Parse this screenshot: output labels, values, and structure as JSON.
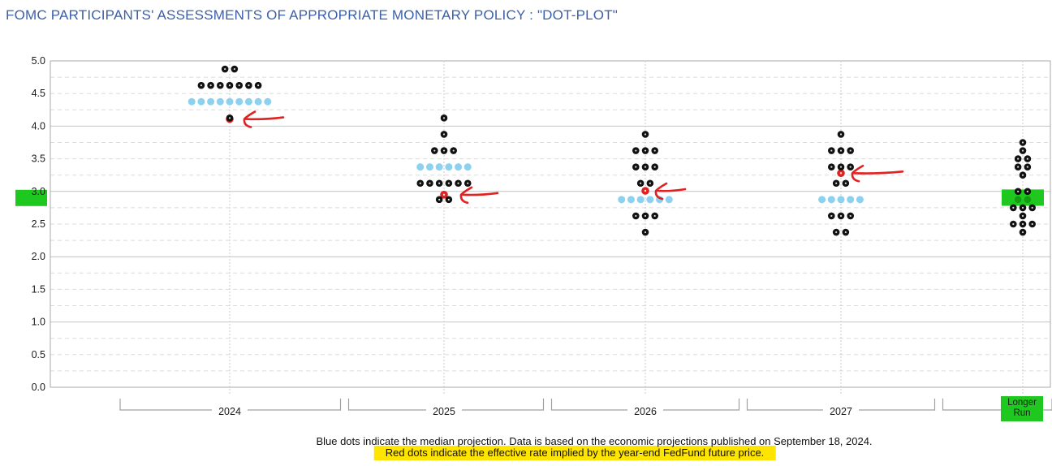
{
  "title": "FOMC PARTICIPANTS' ASSESSMENTS OF APPROPRIATE MONETARY POLICY : \"DOT-PLOT\"",
  "footer": {
    "line1": "Blue dots indicate the median projection. Data is based on the economic projections published on September 18, 2024.",
    "line2": "Red dots indicate the effective rate implied by the year-end FedFund future price."
  },
  "colors": {
    "title_blue": "#3c5fa9",
    "dot_black": "#121212",
    "dot_median_blue": "#8dd1f1",
    "dot_red": "#e02222",
    "arrow_red": "#e02222",
    "highlight_green": "#1ec81e",
    "highlight_yellow": "#ffe400",
    "band_dot_green": "#129c12",
    "grid_solid": "#c4c4c4",
    "grid_dashed": "#dbdbdb",
    "axis_line": "#a8a8a8",
    "bracket_gray": "#a0a0a0",
    "label_text": "#1a1a1a"
  },
  "chart_data": {
    "type": "scatter",
    "title": "FOMC dot plot - target federal funds rate assessments (percent)",
    "y_axis": {
      "min": 0.0,
      "max": 5.0,
      "tick_step": 0.5,
      "tick_labels": [
        "5.0",
        "4.5",
        "4.0",
        "3.5",
        "3.0",
        "2.5",
        "2.0",
        "1.5",
        "1.0",
        "0.5",
        "0.0"
      ],
      "highlighted_tick": "3.0",
      "grid": "solid lines at integers, dashed lines every 0.25"
    },
    "categories": [
      "2024",
      "2025",
      "2026",
      "2027",
      "Longer Run"
    ],
    "columns": [
      {
        "label": "2024",
        "median": 4.375,
        "dots": [
          {
            "rate": 4.875,
            "count": 2
          },
          {
            "rate": 4.625,
            "count": 7
          },
          {
            "rate": 4.375,
            "count": 9,
            "kind": "median"
          },
          {
            "rate": 4.125,
            "count": 1
          }
        ],
        "fedfund_rate": 4.11,
        "arrow": true
      },
      {
        "label": "2025",
        "median": 3.375,
        "dots": [
          {
            "rate": 4.125,
            "count": 1
          },
          {
            "rate": 3.875,
            "count": 1
          },
          {
            "rate": 3.625,
            "count": 3
          },
          {
            "rate": 3.375,
            "count": 6,
            "kind": "median"
          },
          {
            "rate": 3.125,
            "count": 6
          },
          {
            "rate": 2.875,
            "count": 2
          }
        ],
        "fedfund_rate": 2.95,
        "arrow": true
      },
      {
        "label": "2026",
        "median": 2.875,
        "dots": [
          {
            "rate": 3.875,
            "count": 1
          },
          {
            "rate": 3.625,
            "count": 3
          },
          {
            "rate": 3.375,
            "count": 3
          },
          {
            "rate": 3.125,
            "count": 2
          },
          {
            "rate": 2.875,
            "count": 6,
            "kind": "median"
          },
          {
            "rate": 2.625,
            "count": 3
          },
          {
            "rate": 2.375,
            "count": 1
          }
        ],
        "fedfund_rate": 3.01,
        "arrow": true
      },
      {
        "label": "2027",
        "median": 2.875,
        "dots": [
          {
            "rate": 3.875,
            "count": 1
          },
          {
            "rate": 3.625,
            "count": 3
          },
          {
            "rate": 3.375,
            "count": 3
          },
          {
            "rate": 3.125,
            "count": 2
          },
          {
            "rate": 2.875,
            "count": 5,
            "kind": "median"
          },
          {
            "rate": 2.625,
            "count": 3
          },
          {
            "rate": 2.375,
            "count": 2
          }
        ],
        "fedfund_rate": 3.28,
        "arrow": true
      },
      {
        "label": "Longer Run",
        "label_lines": [
          "Longer",
          "Run"
        ],
        "label_highlight": "green",
        "green_band": {
          "rate_top": 3.03,
          "rate_bottom": 2.78
        },
        "dots": [
          {
            "rate": 3.75,
            "count": 1
          },
          {
            "rate": 3.625,
            "count": 1
          },
          {
            "rate": 3.5,
            "count": 2
          },
          {
            "rate": 3.375,
            "count": 2
          },
          {
            "rate": 3.25,
            "count": 1
          },
          {
            "rate": 3.0,
            "count": 2
          },
          {
            "rate": 2.875,
            "count": 2,
            "kind": "shaded"
          },
          {
            "rate": 2.75,
            "count": 3
          },
          {
            "rate": 2.625,
            "count": 1
          },
          {
            "rate": 2.5,
            "count": 3
          },
          {
            "rate": 2.375,
            "count": 1
          }
        ]
      }
    ]
  }
}
